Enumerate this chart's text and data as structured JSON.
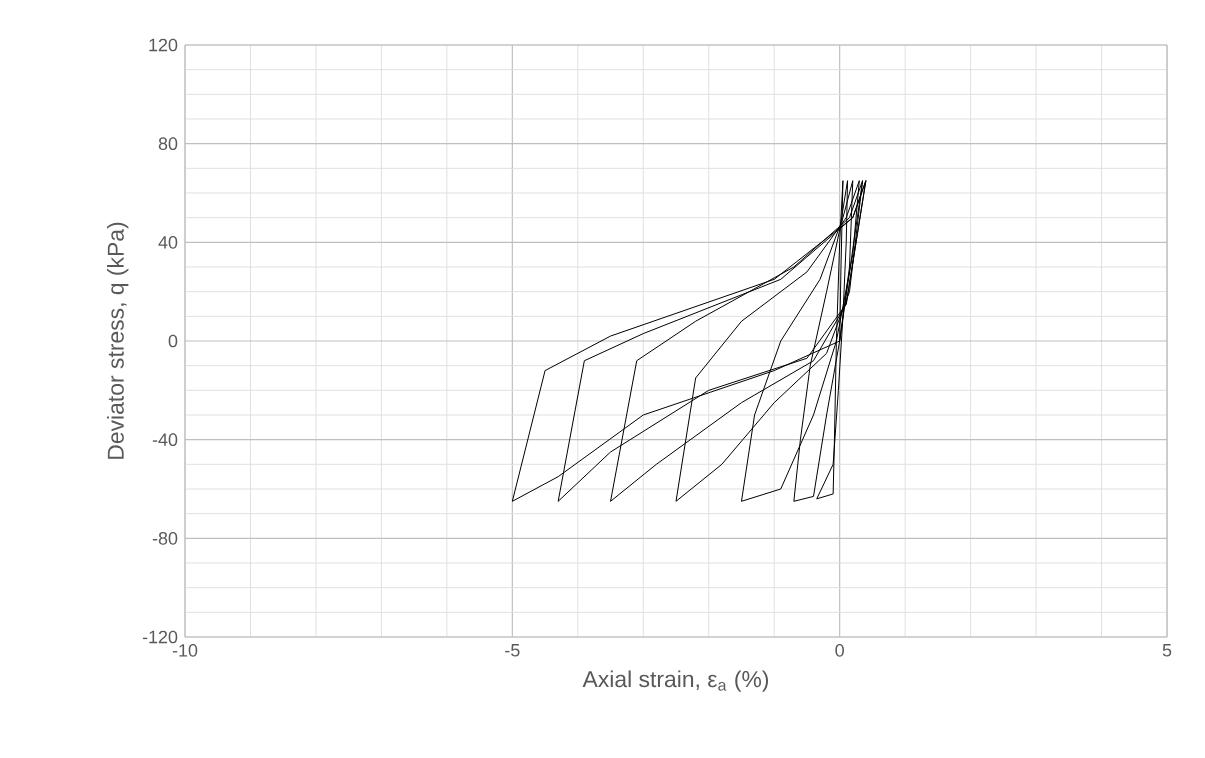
{
  "chart_data": {
    "type": "line",
    "xlabel": "Axial strain, ε$_{a}$ (%)",
    "ylabel": "Deviator stress, q (kPa)",
    "xlim": [
      -10,
      5
    ],
    "xticks": [
      -10,
      -5,
      0,
      5
    ],
    "ylim": [
      -120,
      120
    ],
    "yticks": [
      -120,
      -80,
      -40,
      0,
      40,
      80,
      120
    ],
    "grid": true,
    "marker": "none",
    "line_style": "solid",
    "series": [
      {
        "color": "#000000",
        "x": [
          0,
          0.02,
          0.05,
          0.0,
          -0.05,
          -0.08,
          -0.1,
          -0.35,
          -0.1,
          -0.02,
          0.05,
          0.1,
          0.12,
          0.0,
          -0.2,
          -0.45,
          -0.6,
          -0.7,
          -0.4,
          -0.2,
          0,
          0.15,
          0.2,
          0.05,
          -0.3,
          -0.9,
          -1.3,
          -1.5,
          -0.9,
          -0.4,
          -0.05,
          0.2,
          0.3,
          0.1,
          -0.5,
          -1.5,
          -2.2,
          -2.5,
          -1.8,
          -1,
          -0.2,
          0.15,
          0.35,
          0.15,
          -0.7,
          -2.2,
          -3.1,
          -3.5,
          -2.8,
          -1.5,
          -0.4,
          0.1,
          0.4,
          0.2,
          -0.9,
          -3,
          -3.9,
          -4.3,
          -3.5,
          -2,
          -0.5,
          0.1,
          0.4,
          0.2,
          -1,
          -3.5,
          -4.5,
          -5.0,
          -4.3,
          -3,
          -1,
          0,
          0.35
        ],
        "values": [
          0,
          30,
          65,
          40,
          0,
          -40,
          -62,
          -64,
          -50,
          -20,
          10,
          40,
          65,
          45,
          20,
          -10,
          -40,
          -65,
          -63,
          -30,
          0,
          30,
          65,
          50,
          25,
          0,
          -30,
          -65,
          -60,
          -30,
          0,
          35,
          65,
          50,
          28,
          8,
          -15,
          -65,
          -50,
          -25,
          -5,
          20,
          65,
          50,
          30,
          8,
          -8,
          -65,
          -50,
          -25,
          -8,
          15,
          65,
          50,
          25,
          3,
          -8,
          -65,
          -45,
          -20,
          -7,
          15,
          65,
          50,
          25,
          2,
          -12,
          -65,
          -55,
          -30,
          -12,
          0,
          65
        ]
      }
    ]
  }
}
